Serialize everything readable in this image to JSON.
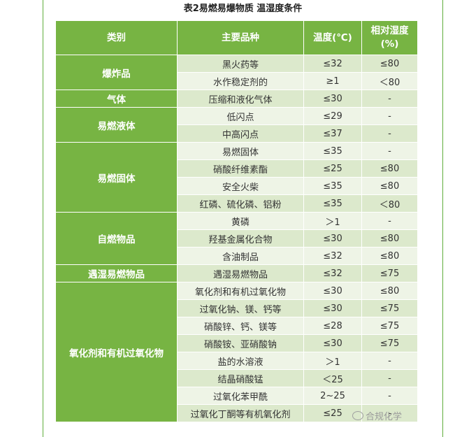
{
  "caption": "表2易燃易爆物质 温湿度条件",
  "headers": {
    "category": "类别",
    "item": "主要品种",
    "temp": "温度(℃)",
    "humidity_line1": "相对湿度",
    "humidity_line2": "(%)"
  },
  "rows": [
    {
      "category": "爆炸品",
      "item": "黑火药等",
      "temp": "≤32",
      "humidity": "≤80"
    },
    {
      "item": "水作稳定剂的",
      "temp": "≥1",
      "humidity": "＜80"
    },
    {
      "category": "气体",
      "item": "压缩和液化气体",
      "temp": "≤30",
      "humidity": "-"
    },
    {
      "category": "易燃液体",
      "item": "低闪点",
      "temp": "≤29",
      "humidity": "-"
    },
    {
      "item": "中高闪点",
      "temp": "≤37",
      "humidity": "-"
    },
    {
      "category": "易燃固体",
      "item": "易燃固体",
      "temp": "≤35",
      "humidity": "-"
    },
    {
      "item": "硝酸纤维素酯",
      "temp": "≤25",
      "humidity": "≤80"
    },
    {
      "item": "安全火柴",
      "temp": "≤35",
      "humidity": "≤80"
    },
    {
      "item": "红磷、硫化磷、铝粉",
      "temp": "≤35",
      "humidity": "＜80"
    },
    {
      "category": "自燃物品",
      "item": "黄磷",
      "temp": "＞1",
      "humidity": "-"
    },
    {
      "item": "羟基金属化合物",
      "temp": "≤30",
      "humidity": "≤80"
    },
    {
      "item": "含油制品",
      "temp": "≤32",
      "humidity": "≤80"
    },
    {
      "category": "遇湿易燃物品",
      "item": "遇湿易燃物品",
      "temp": "≤32",
      "humidity": "≤75"
    },
    {
      "category": "氧化剂和有机过氧化物",
      "item": "氧化剂和有机过氧化物",
      "temp": "≤30",
      "humidity": "≤80"
    },
    {
      "item": "过氧化钠、镁、钙等",
      "temp": "≤30",
      "humidity": "≤75"
    },
    {
      "item": "硝酸锌、钙、镁等",
      "temp": "≤28",
      "humidity": "≤75"
    },
    {
      "item": "硝酸铵、亚硝酸钠",
      "temp": "≤30",
      "humidity": "≤75"
    },
    {
      "item": "盐的水溶液",
      "temp": "＞1",
      "humidity": "-"
    },
    {
      "item": "结晶硝酸锰",
      "temp": "＜25",
      "humidity": "-"
    },
    {
      "item": "过氧化苯甲酰",
      "temp": "2~25",
      "humidity": "-"
    },
    {
      "item": "过氧化丁酮等有机氧化剂",
      "temp": "≤25",
      "humidity": "-"
    }
  ],
  "watermark": "合规化学"
}
